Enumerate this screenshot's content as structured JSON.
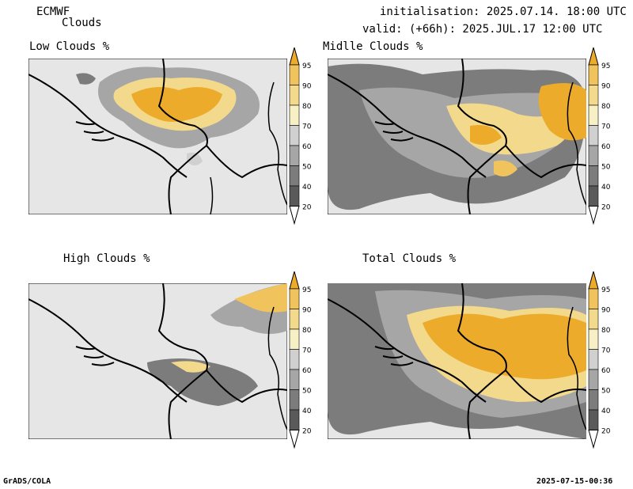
{
  "header": {
    "model": "ECMWF",
    "product": "Clouds",
    "init": "initialisation: 2025.07.14. 18:00 UTC",
    "valid": "valid: (+66h): 2025.JUL.17 12:00 UTC"
  },
  "panels": [
    {
      "title": "Low Clouds %"
    },
    {
      "title": "Midlle Clouds %"
    },
    {
      "title": "High Clouds %"
    },
    {
      "title": "Total Clouds %"
    }
  ],
  "colorbar": {
    "levels": [
      "95",
      "90",
      "80",
      "70",
      "60",
      "50",
      "40",
      "20"
    ],
    "colors": [
      "#ecab2b",
      "#f0c35c",
      "#f3d98c",
      "#f6f0c4",
      "#d0d0d0",
      "#a6a6a6",
      "#7c7c7c",
      "#5a5a5a",
      "#ffffff"
    ],
    "background_color": "#e6e6e6",
    "border_color": "#000000"
  },
  "footer": {
    "left": "GrADS/COLA",
    "right": "2025-07-15-00:36"
  }
}
